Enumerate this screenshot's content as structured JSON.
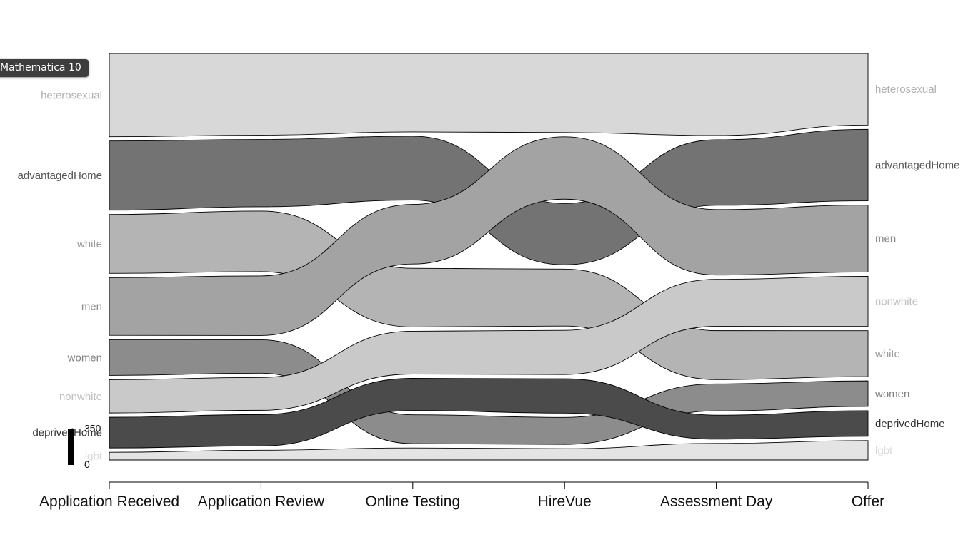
{
  "tooltip": {
    "text": "Mathematica 10"
  },
  "chart_data": {
    "type": "sankey",
    "stages": [
      "Application Received",
      "Application Review",
      "Online Testing",
      "HireVue",
      "Assessment Day",
      "Offer"
    ],
    "scale": {
      "max_label": "350",
      "min_label": "0",
      "max_value": 350
    },
    "nodes": {
      "heterosexual": {
        "label": "heterosexual",
        "fill": "#d8d8d8",
        "text": "#b0b0b0",
        "values": [
          325,
          318,
          326,
          322,
          328,
          280
        ]
      },
      "advantagedHome": {
        "label": "advantagedHome",
        "fill": "#737373",
        "text": "#555555",
        "values": [
          270,
          262,
          266,
          250,
          262,
          280
        ]
      },
      "white": {
        "label": "white",
        "fill": "#b4b4b4",
        "text": "#9a9a9a",
        "values": [
          230,
          236,
          244,
          232,
          196,
          180
        ]
      },
      "men": {
        "label": "men",
        "fill": "#a3a3a3",
        "text": "#8a8a8a",
        "values": [
          225,
          232,
          248,
          254,
          262,
          262
        ]
      },
      "women": {
        "label": "women",
        "fill": "#8c8c8c",
        "text": "#808080",
        "values": [
          140,
          130,
          120,
          110,
          108,
          100
        ]
      },
      "nonwhite": {
        "label": "nonwhite",
        "fill": "#c9c9c9",
        "text": "#c0c0c0",
        "values": [
          130,
          128,
          178,
          180,
          188,
          196
        ]
      },
      "deprivedHome": {
        "label": "deprivedHome",
        "fill": "#4b4b4b",
        "text": "#333333",
        "values": [
          120,
          122,
          134,
          140,
          96,
          100
        ]
      },
      "lgbt": {
        "label": "lgbt",
        "fill": "#e4e4e4",
        "text": "#d8d8d8",
        "values": [
          30,
          38,
          50,
          46,
          66,
          76
        ]
      }
    },
    "order": [
      [
        "heterosexual",
        "advantagedHome",
        "white",
        "men",
        "women",
        "nonwhite",
        "deprivedHome",
        "lgbt"
      ],
      [
        "heterosexual",
        "advantagedHome",
        "white",
        "men",
        "women",
        "nonwhite",
        "deprivedHome",
        "lgbt"
      ],
      [
        "heterosexual",
        "advantagedHome",
        "men",
        "white",
        "nonwhite",
        "deprivedHome",
        "women",
        "lgbt"
      ],
      [
        "heterosexual",
        "men",
        "advantagedHome",
        "white",
        "nonwhite",
        "deprivedHome",
        "women",
        "lgbt"
      ],
      [
        "heterosexual",
        "advantagedHome",
        "men",
        "nonwhite",
        "white",
        "women",
        "deprivedHome",
        "lgbt"
      ],
      [
        "heterosexual",
        "advantagedHome",
        "men",
        "nonwhite",
        "white",
        "women",
        "deprivedHome",
        "lgbt"
      ]
    ]
  }
}
